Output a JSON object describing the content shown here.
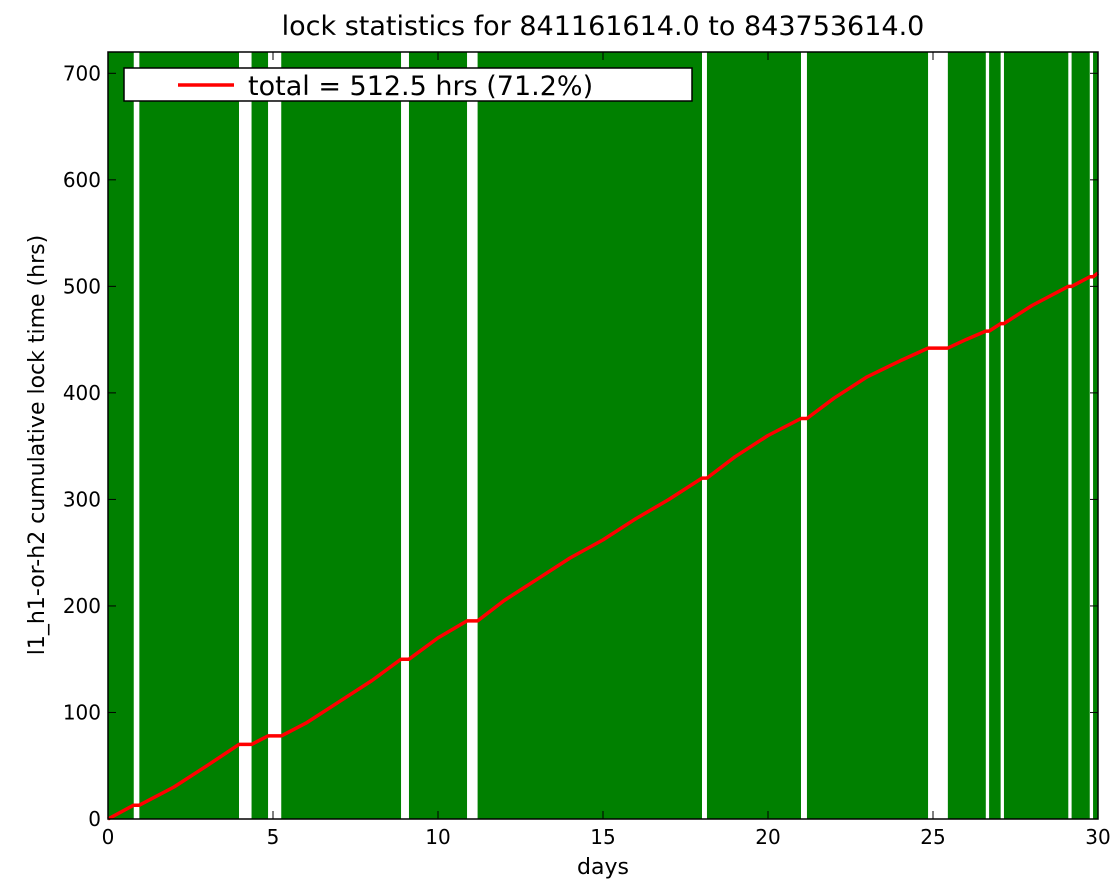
{
  "chart_data": {
    "type": "line",
    "title": "lock statistics for 841161614.0 to 843753614.0",
    "xlabel": "days",
    "ylabel": "l1_h1-or-h2 cumulative lock time (hrs)",
    "xlim": [
      0,
      30
    ],
    "ylim": [
      0,
      720
    ],
    "x_ticks": [
      0,
      5,
      10,
      15,
      20,
      25,
      30
    ],
    "y_ticks": [
      0,
      100,
      200,
      300,
      400,
      500,
      600,
      700
    ],
    "legend": {
      "location": "upper left",
      "text": "total = 512.5 hrs (71.2%)"
    },
    "colors": {
      "locked_fill": "#008000",
      "cumulative_line": "#ff0000",
      "unlocked": "#ffffff"
    },
    "unlocked_intervals_days": [
      [
        0.78,
        0.95
      ],
      [
        3.97,
        4.35
      ],
      [
        4.85,
        5.25
      ],
      [
        8.88,
        9.12
      ],
      [
        10.88,
        11.2
      ],
      [
        18.0,
        18.15
      ],
      [
        21.0,
        21.18
      ],
      [
        24.85,
        25.45
      ],
      [
        26.6,
        26.7
      ],
      [
        27.05,
        27.15
      ],
      [
        29.1,
        29.2
      ],
      [
        29.75,
        29.85
      ]
    ],
    "series": [
      {
        "name": "total = 512.5 hrs (71.2%)",
        "x": [
          0,
          0.78,
          0.95,
          2,
          3,
          3.97,
          4.35,
          4.85,
          5.25,
          6,
          7,
          8,
          8.88,
          9.12,
          10,
          10.88,
          11.2,
          12,
          13,
          14,
          15,
          16,
          17,
          18.0,
          18.15,
          19,
          20,
          21.0,
          21.18,
          22,
          23,
          24,
          24.85,
          25.45,
          26,
          26.6,
          26.7,
          27.05,
          27.15,
          28,
          29.1,
          29.2,
          29.75,
          29.85,
          30
        ],
        "y": [
          0,
          13,
          13,
          30,
          50,
          70,
          70,
          78,
          78,
          90,
          110,
          130,
          150,
          150,
          170,
          186,
          186,
          205,
          225,
          245,
          262,
          282,
          300,
          320,
          320,
          340,
          360,
          376,
          376,
          395,
          415,
          430,
          442,
          442,
          450,
          458,
          458,
          465,
          465,
          482,
          500,
          500,
          509,
          509,
          512.5
        ]
      }
    ]
  }
}
